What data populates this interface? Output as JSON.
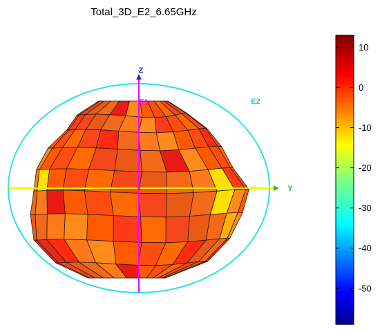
{
  "chart_data": {
    "type": "3d-radiation-pattern",
    "title": "Total_3D_E2_6.65GHz",
    "axes": {
      "z_label": "Z",
      "y_label": "Y",
      "e1_label": "E1",
      "e2_label": "E2"
    },
    "colorbar": {
      "min": -59,
      "max": 13,
      "ticks": [
        "10",
        "0",
        "-10",
        "-20",
        "-30",
        "-40",
        "-50"
      ],
      "tick_values": [
        10,
        0,
        -10,
        -20,
        -30,
        -40,
        -50
      ]
    },
    "colors": {
      "axis_z": "#ff00ff",
      "axis_y": "#f2f200",
      "ellipse": "#29e1ea",
      "axis_letter_z": "#2a2ad8",
      "axis_letter_y": "#2ab82a",
      "axis_letter_e": "#21c6d6",
      "mesh_line": "#2b1b10"
    }
  }
}
